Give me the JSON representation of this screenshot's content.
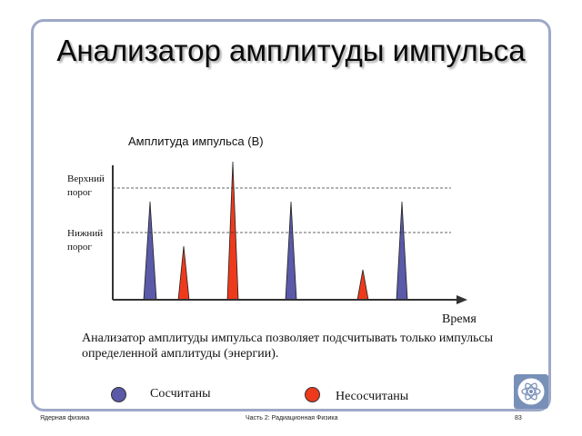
{
  "slide": {
    "title": "Анализатор амплитуды импульса",
    "description": "Анализатор амплитуды импульса позволяет подсчитывать только импульсы определенной амплитуды (энергии).",
    "footer_left": "Ядерная физика",
    "footer_center": "Часть 2: Радиационная Физика",
    "footer_right": "83"
  },
  "diagram": {
    "y_axis_title": "Амплитуда импульса (В)",
    "x_axis_title": "Время",
    "upper_threshold_label": "Верхний порог",
    "lower_threshold_label": "Нижний порог",
    "colors": {
      "counted": "#5a5aa8",
      "not_counted": "#ee3a1c",
      "axis": "#333333"
    },
    "pulses": [
      {
        "kind": "counted"
      },
      {
        "kind": "not_counted"
      },
      {
        "kind": "not_counted"
      },
      {
        "kind": "counted"
      },
      {
        "kind": "not_counted"
      },
      {
        "kind": "counted"
      }
    ]
  },
  "legend": {
    "counted_label": "Сосчитаны",
    "not_counted_label": "Несосчитаны"
  }
}
